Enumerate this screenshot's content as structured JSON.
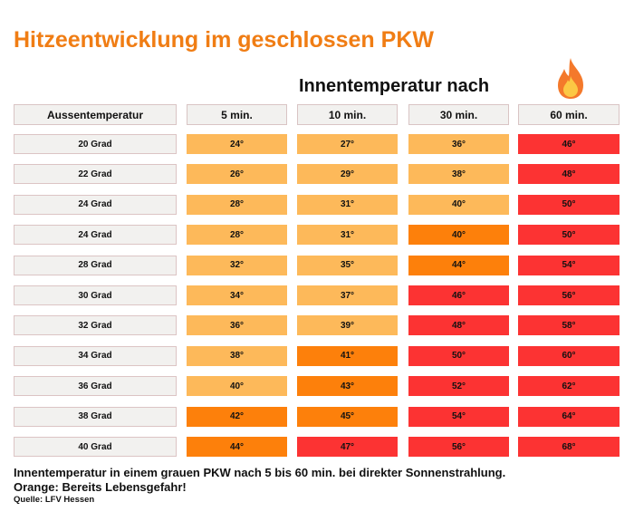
{
  "title": "Hitzeentwicklung im geschlossen PKW",
  "subtitle": "Innentemperatur nach",
  "colors": {
    "title": "#f07d14",
    "light": "#fdb95a",
    "orange": "#fd800b",
    "red": "#fc3333",
    "label_bg": "#f2f1ef"
  },
  "chart_data": {
    "type": "table",
    "columns": [
      "Aussentemperatur",
      "5 min.",
      "10 min.",
      "30 min.",
      "60 min."
    ],
    "rows": [
      {
        "label": "20 Grad",
        "values": [
          "24°",
          "27°",
          "36°",
          "46°"
        ],
        "levels": [
          "light",
          "light",
          "light",
          "red"
        ]
      },
      {
        "label": "22 Grad",
        "values": [
          "26°",
          "29°",
          "38°",
          "48°"
        ],
        "levels": [
          "light",
          "light",
          "light",
          "red"
        ]
      },
      {
        "label": "24 Grad",
        "values": [
          "28°",
          "31°",
          "40°",
          "50°"
        ],
        "levels": [
          "light",
          "light",
          "light",
          "red"
        ]
      },
      {
        "label": "24 Grad",
        "values": [
          "28°",
          "31°",
          "40°",
          "50°"
        ],
        "levels": [
          "light",
          "light",
          "orange",
          "red"
        ]
      },
      {
        "label": "28 Grad",
        "values": [
          "32°",
          "35°",
          "44°",
          "54°"
        ],
        "levels": [
          "light",
          "light",
          "orange",
          "red"
        ]
      },
      {
        "label": "30 Grad",
        "values": [
          "34°",
          "37°",
          "46°",
          "56°"
        ],
        "levels": [
          "light",
          "light",
          "red",
          "red"
        ]
      },
      {
        "label": "32 Grad",
        "values": [
          "36°",
          "39°",
          "48°",
          "58°"
        ],
        "levels": [
          "light",
          "light",
          "red",
          "red"
        ]
      },
      {
        "label": "34 Grad",
        "values": [
          "38°",
          "41°",
          "50°",
          "60°"
        ],
        "levels": [
          "light",
          "orange",
          "red",
          "red"
        ]
      },
      {
        "label": "36 Grad",
        "values": [
          "40°",
          "43°",
          "52°",
          "62°"
        ],
        "levels": [
          "light",
          "orange",
          "red",
          "red"
        ]
      },
      {
        "label": "38 Grad",
        "values": [
          "42°",
          "45°",
          "54°",
          "64°"
        ],
        "levels": [
          "orange",
          "orange",
          "red",
          "red"
        ]
      },
      {
        "label": "40 Grad",
        "values": [
          "44°",
          "47°",
          "56°",
          "68°"
        ],
        "levels": [
          "orange",
          "red",
          "red",
          "red"
        ]
      }
    ]
  },
  "footer": {
    "note": "Innentemperatur in einem grauen PKW nach 5 bis 60 min. bei direkter Sonnenstrahlung.",
    "warning": "Orange: Bereits Lebensgefahr!",
    "source": "Quelle: LFV Hessen"
  }
}
